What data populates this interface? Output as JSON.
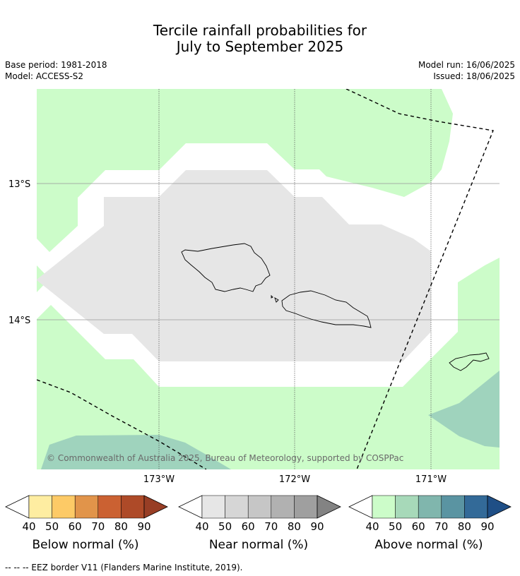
{
  "title": {
    "line1": "Tercile rainfall probabilities for",
    "line2": "July to September 2025"
  },
  "meta": {
    "base_period": "Base period: 1981-2018",
    "model": "Model: ACCESS-S2",
    "model_run": "Model run: 16/06/2025",
    "issued": "Issued: 18/06/2025"
  },
  "map": {
    "lat_labels": [
      "13°S",
      "14°S"
    ],
    "lon_labels": [
      "173°W",
      "172°W",
      "171°W"
    ],
    "copyright": "© Commonwealth of Australia 2025, Bureau of Meteorology, supported by COSPPac",
    "colors": {
      "above_40": "#ccfcc9",
      "above_60": "#9fd3bd",
      "near": "#e6e6e6",
      "background": "#ffffff"
    }
  },
  "colorbars": [
    {
      "name": "below",
      "title": "Below normal (%)",
      "ticks": [
        "40",
        "50",
        "60",
        "70",
        "80",
        "90"
      ],
      "low_color": "#ffffff",
      "colors": [
        "#feeda1",
        "#fdca66",
        "#e1944a",
        "#cb6132",
        "#ae4a28"
      ],
      "high_color": "#983e25"
    },
    {
      "name": "near",
      "title": "Near normal (%)",
      "ticks": [
        "40",
        "50",
        "60",
        "70",
        "80",
        "90"
      ],
      "low_color": "#ffffff",
      "colors": [
        "#e6e6e6",
        "#d6d6d6",
        "#c6c6c6",
        "#b1b1b1",
        "#9f9f9f"
      ],
      "high_color": "#838383"
    },
    {
      "name": "above",
      "title": "Above normal (%)",
      "ticks": [
        "40",
        "50",
        "60",
        "70",
        "80",
        "90"
      ],
      "low_color": "#ffffff",
      "colors": [
        "#ccfcc9",
        "#a7d9b9",
        "#80b6ad",
        "#5a94a2",
        "#336a98"
      ],
      "high_color": "#1f4f86"
    }
  ],
  "footnote": "--  --  -- EEZ border V11 (Flanders Marine Institute, 2019)."
}
